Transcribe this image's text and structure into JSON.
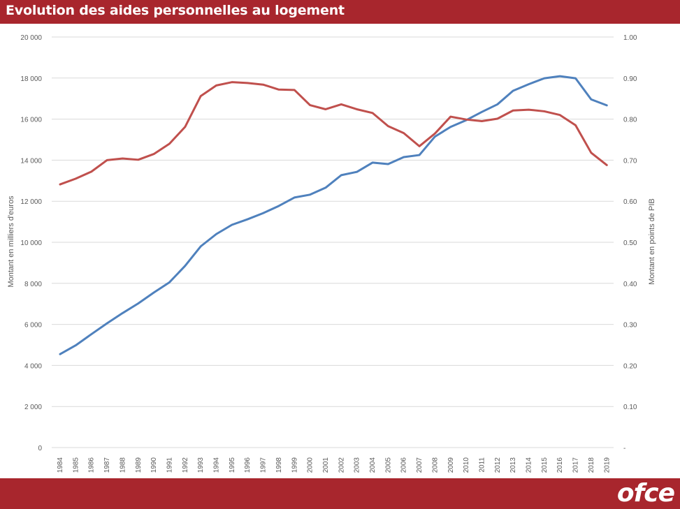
{
  "header": {
    "title": "Evolution des aides personnelles au logement"
  },
  "footer": {
    "logo_text": "ofce"
  },
  "colors": {
    "header_bg": "#a8262d",
    "series_amount": "#4f81bd",
    "series_gdp": "#c0504d",
    "grid": "#d9d9d9",
    "text": "#595959"
  },
  "chart_data": {
    "type": "line",
    "title": "Evolution des aides personnelles au logement",
    "x": [
      "1984",
      "1985",
      "1986",
      "1987",
      "1988",
      "1989",
      "1990",
      "1991",
      "1992",
      "1993",
      "1994",
      "1995",
      "1996",
      "1997",
      "1998",
      "1999",
      "2000",
      "2001",
      "2002",
      "2003",
      "2004",
      "2005",
      "2006",
      "2007",
      "2008",
      "2009",
      "2010",
      "2011",
      "2012",
      "2013",
      "2014",
      "2015",
      "2016",
      "2017",
      "2018",
      "2019"
    ],
    "ylabel_left": "Montant en milliers d'euros",
    "ylabel_right": "Montant en points de PIB",
    "ylim_left": [
      0,
      20000
    ],
    "ylim_right": [
      0,
      1.0
    ],
    "yticks_left": [
      "0",
      "2 000",
      "4 000",
      "6 000",
      "8 000",
      "10 000",
      "12 000",
      "14 000",
      "16 000",
      "18 000",
      "20 000"
    ],
    "yticks_right": [
      "-",
      "0.10",
      "0.20",
      "0.30",
      "0.40",
      "0.50",
      "0.60",
      "0.70",
      "0.80",
      "0.90",
      "1.00"
    ],
    "grid": true,
    "legend": "none",
    "series": [
      {
        "axis": "left",
        "color": "#4f81bd",
        "values": [
          4550,
          4980,
          5520,
          6050,
          6550,
          7020,
          7550,
          8050,
          8850,
          9800,
          10400,
          10850,
          11120,
          11420,
          11770,
          12180,
          12320,
          12660,
          13270,
          13430,
          13880,
          13810,
          14150,
          14250,
          15150,
          15620,
          15950,
          16350,
          16720,
          17380,
          17700,
          17990,
          18090,
          17990,
          16960,
          16670
        ]
      },
      {
        "axis": "right",
        "color": "#c0504d",
        "values": [
          0.641,
          0.655,
          0.672,
          0.7,
          0.704,
          0.701,
          0.715,
          0.74,
          0.781,
          0.856,
          0.882,
          0.89,
          0.888,
          0.884,
          0.872,
          0.871,
          0.834,
          0.824,
          0.836,
          0.824,
          0.815,
          0.783,
          0.766,
          0.734,
          0.765,
          0.806,
          0.799,
          0.795,
          0.801,
          0.821,
          0.823,
          0.819,
          0.81,
          0.785,
          0.718,
          0.688
        ]
      }
    ]
  }
}
